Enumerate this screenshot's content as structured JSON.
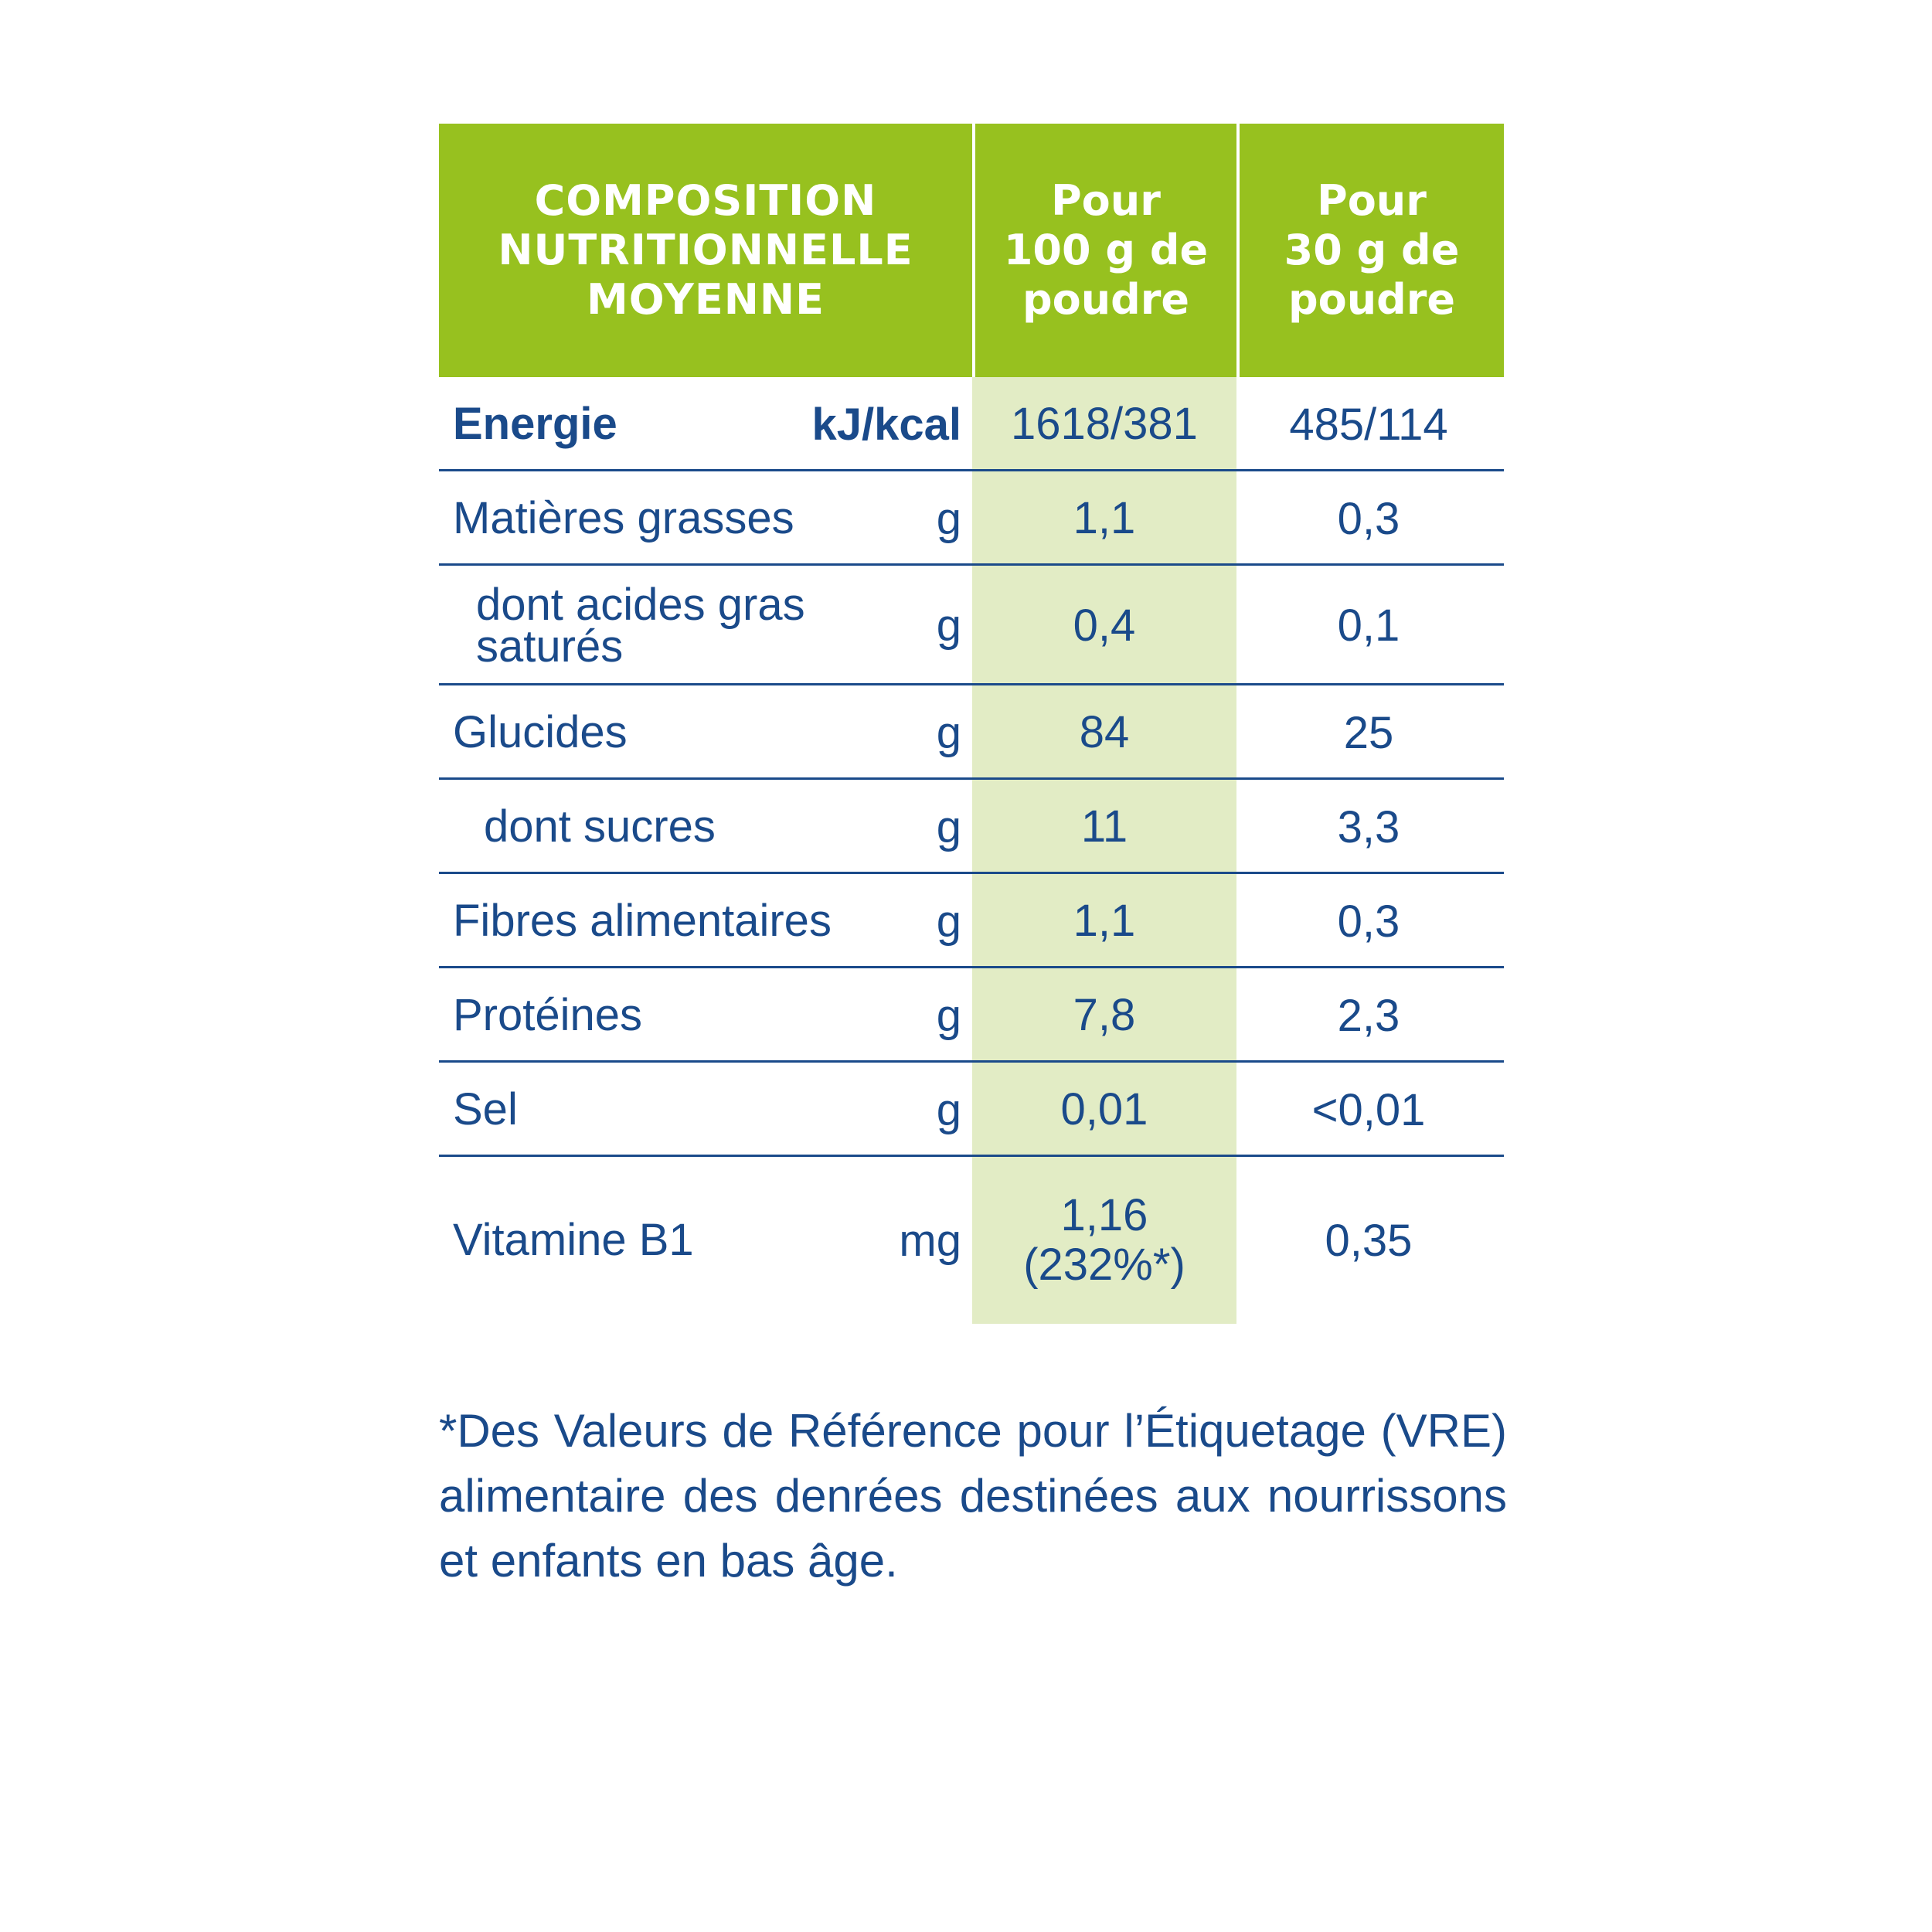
{
  "header": {
    "col1": "COMPOSITION\nNUTRITIONNELLE\nMOYENNE",
    "col2": "Pour\n100 g de\npoudre",
    "col3": "Pour\n30 g de\npoudre"
  },
  "rows": [
    {
      "label": "Energie",
      "unit": "kJ/kcal",
      "v100": "1618/381",
      "v30": "485/114"
    },
    {
      "label": "Matières grasses",
      "unit": "g",
      "v100": "1,1",
      "v30": "0,3"
    },
    {
      "label": "dont acides gras saturés",
      "unit": "g",
      "v100": "0,4",
      "v30": "0,1"
    },
    {
      "label": "Glucides",
      "unit": "g",
      "v100": "84",
      "v30": "25"
    },
    {
      "label": "dont sucres",
      "unit": "g",
      "v100": "11",
      "v30": "3,3"
    },
    {
      "label": "Fibres alimentaires",
      "unit": "g",
      "v100": "1,1",
      "v30": "0,3"
    },
    {
      "label": "Protéines",
      "unit": "g",
      "v100": "7,8",
      "v30": "2,3"
    },
    {
      "label": "Sel",
      "unit": "g",
      "v100": "0,01",
      "v30": "<0,01"
    },
    {
      "label": "Vitamine B1",
      "unit": "mg",
      "v100": "1,16\n(232%*)",
      "v30": "0,35"
    }
  ],
  "footnote": "*Des Valeurs de Référence pour l’Étiquetage (VRE) alimentaire des denrées destinées aux nourrissons et enfants en bas âge."
}
